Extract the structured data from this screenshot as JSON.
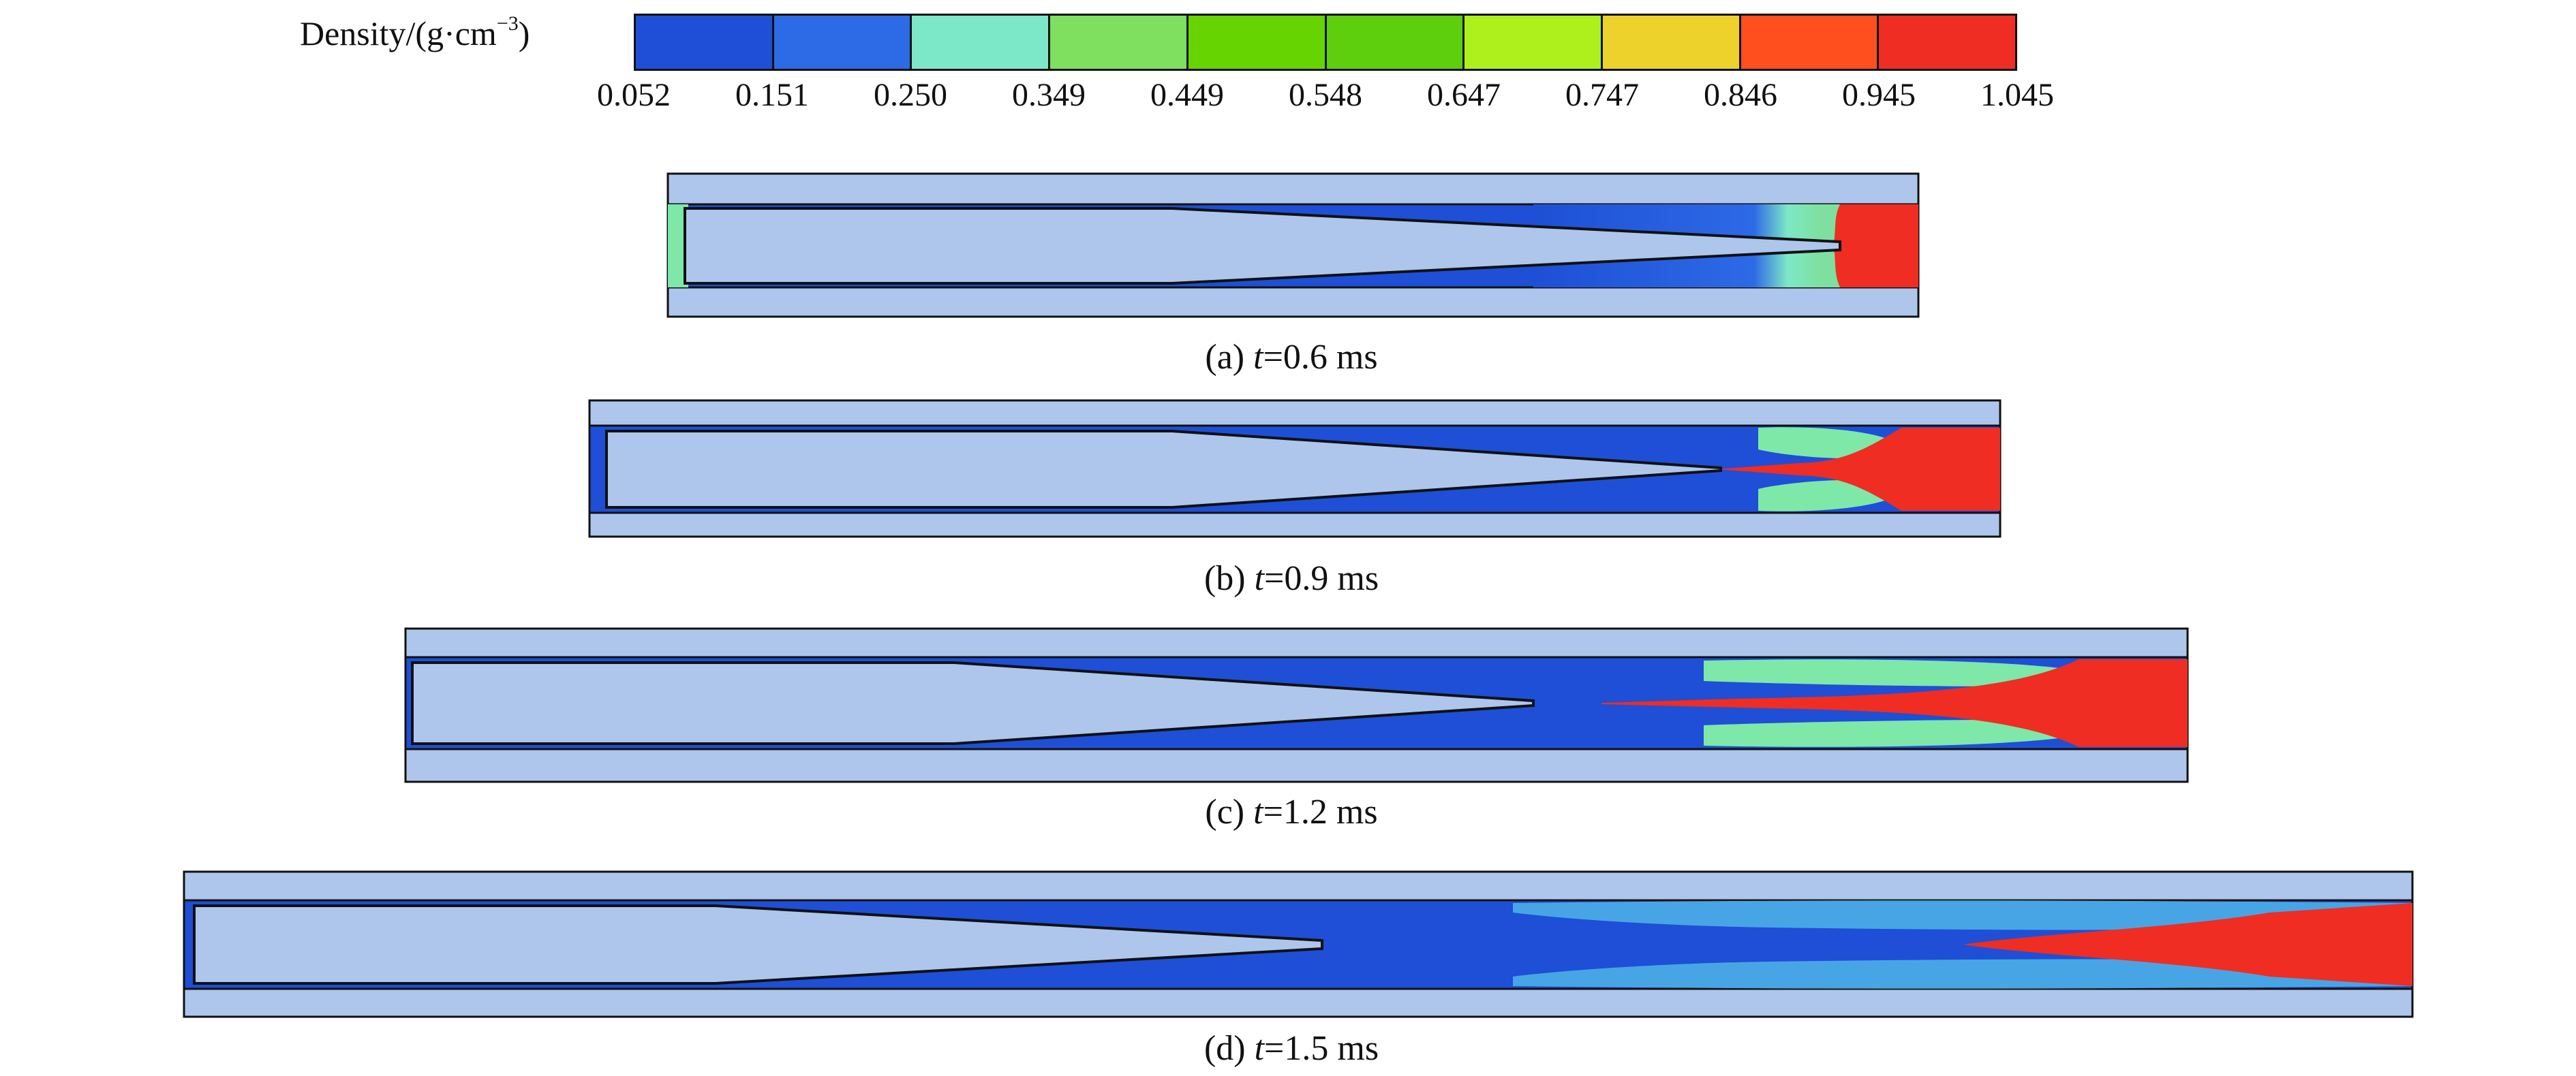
{
  "legend": {
    "title_text": "Density/(g·cm",
    "title_exp": "−3",
    "title_close": ")",
    "colors": [
      "#1e4fd6",
      "#2d6ae6",
      "#7de8c8",
      "#7ee05e",
      "#66d400",
      "#5ecf0c",
      "#aef01c",
      "#ecd22a",
      "#ff4f1e",
      "#ef2d22"
    ],
    "ticks": [
      "0.052",
      "0.151",
      "0.250",
      "0.349",
      "0.449",
      "0.548",
      "0.647",
      "0.747",
      "0.846",
      "0.945",
      "1.045"
    ]
  },
  "panels": [
    {
      "id": "a",
      "label": "(a) ",
      "var": "t",
      "value": "=0.6 ms"
    },
    {
      "id": "b",
      "label": "(b) ",
      "var": "t",
      "value": "=0.9 ms"
    },
    {
      "id": "c",
      "label": "(c) ",
      "var": "t",
      "value": "=1.2 ms"
    },
    {
      "id": "d",
      "label": "(d) ",
      "var": "t",
      "value": "=1.5 ms"
    }
  ]
}
